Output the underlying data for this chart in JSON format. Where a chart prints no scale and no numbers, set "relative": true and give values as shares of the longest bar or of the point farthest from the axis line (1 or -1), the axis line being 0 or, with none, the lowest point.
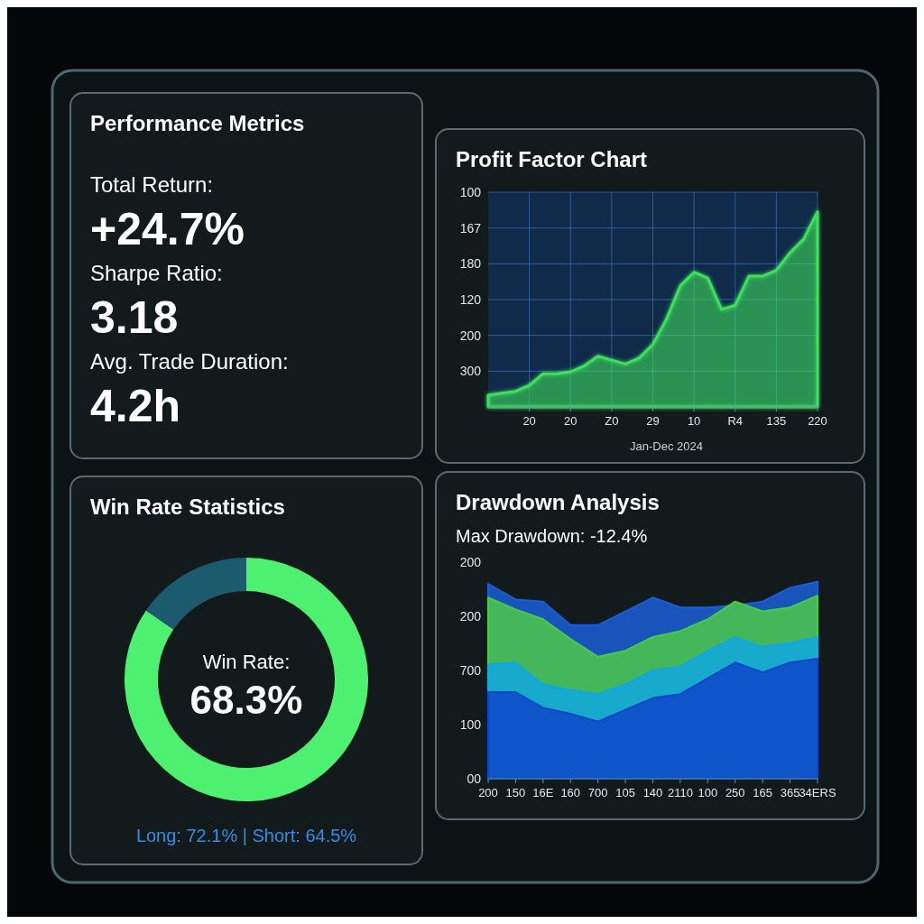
{
  "chart_data": [
    {
      "type": "other",
      "title": "Performance Metrics",
      "annotations": [
        "Total Return:",
        "+24.7%",
        "Sharpe Ratio:",
        "3.18",
        "Avg. Trade Duration:",
        "4.2h"
      ]
    },
    {
      "type": "area",
      "title": "Profit Factor Chart",
      "xlabel": "Jan-Dec 2024",
      "color": "#3ee05c",
      "relative": true,
      "grid": true,
      "categories": [
        null,
        null,
        null,
        "20",
        null,
        null,
        "20",
        null,
        null,
        "Z0",
        null,
        null,
        "29",
        null,
        null,
        "10",
        null,
        null,
        "R4",
        null,
        null,
        "135",
        null,
        null,
        "220"
      ],
      "values": [
        0.06,
        0.07,
        0.08,
        0.11,
        0.17,
        0.17,
        0.18,
        0.21,
        0.26,
        0.24,
        0.22,
        0.25,
        0.32,
        0.45,
        0.62,
        0.69,
        0.66,
        0.5,
        0.52,
        0.67,
        0.67,
        0.7,
        0.79,
        0.86,
        1
      ],
      "annotations": [
        "300",
        "200",
        "120",
        "180",
        "167",
        "100"
      ]
    },
    {
      "type": "donut",
      "title": "Win Rate Statistics",
      "categories": [
        null,
        null
      ],
      "values": [
        84.6,
        15.4
      ],
      "colors": [
        "#4ef070",
        "#1c5a6e"
      ],
      "annotations": [
        "Win Rate:",
        "68.3%",
        "Long: 72.1% | Short: 64.5%"
      ]
    },
    {
      "type": "area",
      "title": "Drawdown Analysis",
      "subtitle": "Max Drawdown: -12.4%",
      "relative": true,
      "categories": [
        "200",
        "150",
        "16E",
        "160",
        "700",
        "105",
        "140",
        "2110",
        "100",
        "250",
        "165",
        "365",
        "34ERS"
      ],
      "series": [
        {
          "color": "#1a5fd6",
          "values": [
            0.99,
            0.91,
            0.9,
            0.78,
            0.78,
            0.85,
            0.92,
            0.87,
            0.87,
            0.88,
            0.9,
            0.97,
            1
          ]
        },
        {
          "color": "#4cc94a",
          "values": [
            0.92,
            0.86,
            0.81,
            0.71,
            0.62,
            0.65,
            0.72,
            0.75,
            0.81,
            0.9,
            0.85,
            0.87,
            0.93
          ]
        },
        {
          "color": "#10a8e0",
          "values": [
            0.58,
            0.59,
            0.48,
            0.45,
            0.43,
            0.48,
            0.55,
            0.57,
            0.65,
            0.72,
            0.67,
            0.69,
            0.72
          ]
        },
        {
          "color": "#0d47c9",
          "values": [
            0.44,
            0.44,
            0.36,
            0.33,
            0.29,
            0.35,
            0.41,
            0.43,
            0.51,
            0.59,
            0.54,
            0.59,
            0.61
          ]
        }
      ],
      "annotations": [
        "00",
        "100",
        "700",
        "200",
        "200"
      ]
    }
  ]
}
